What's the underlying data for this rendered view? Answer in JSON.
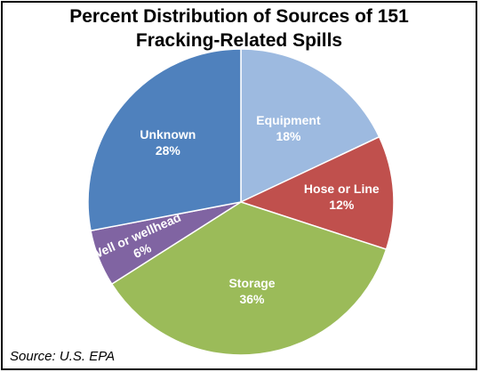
{
  "chart_data": {
    "type": "pie",
    "title_lines": [
      "Percent Distribution of Sources of 151",
      "Fracking-Related Spills"
    ],
    "source": "Source: U.S. EPA",
    "slices": [
      {
        "label": "Equipment",
        "value": 18,
        "value_label": "18%",
        "color": "#9dbae0"
      },
      {
        "label": "Hose or Line",
        "value": 12,
        "value_label": "12%",
        "color": "#c0504d"
      },
      {
        "label": "Storage",
        "value": 36,
        "value_label": "36%",
        "color": "#9bbb59"
      },
      {
        "label": "Well or wellhead",
        "value": 6,
        "value_label": "6%",
        "color": "#8064a2"
      },
      {
        "label": "Unknown",
        "value": 28,
        "value_label": "28%",
        "color": "#4f81bd"
      }
    ]
  }
}
